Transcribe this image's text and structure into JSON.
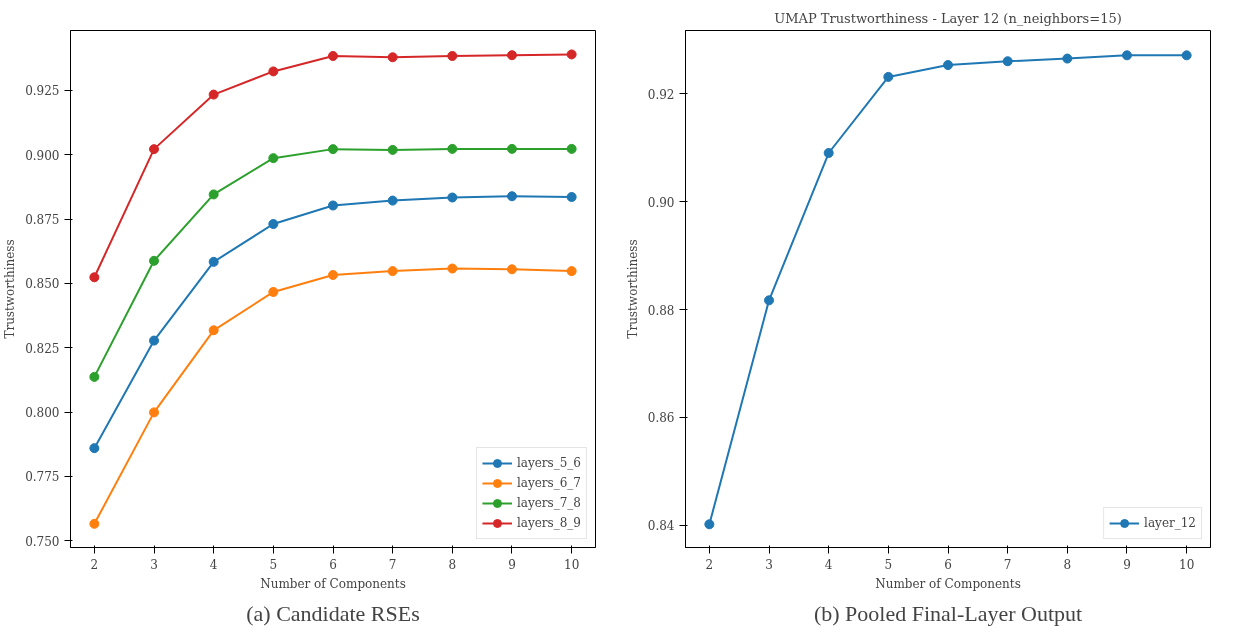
{
  "chart_data": [
    {
      "type": "line",
      "xlabel": "Number of Components",
      "ylabel": "Trustworthiness",
      "annotations": [
        "(a) Candidate RSEs"
      ],
      "x": [
        2,
        3,
        4,
        5,
        6,
        7,
        8,
        9,
        10
      ],
      "xlim": [
        1.6,
        10.4
      ],
      "xticks": [
        2,
        3,
        4,
        5,
        6,
        7,
        8,
        9,
        10
      ],
      "ylim": [
        0.7474,
        0.9483
      ],
      "yticks": [
        {
          "value": 0.75,
          "label": "0.750"
        },
        {
          "value": 0.775,
          "label": "0.775"
        },
        {
          "value": 0.8,
          "label": "0.800"
        },
        {
          "value": 0.825,
          "label": "0.825"
        },
        {
          "value": 0.85,
          "label": "0.850"
        },
        {
          "value": 0.875,
          "label": "0.875"
        },
        {
          "value": 0.9,
          "label": "0.900"
        },
        {
          "value": 0.925,
          "label": "0.925"
        }
      ],
      "grid": false,
      "legend": "bottom right",
      "marker": "circle",
      "line_style": "solid",
      "series": [
        {
          "name": "layers_5_6",
          "color": "#1f77b4",
          "values": [
            0.786,
            0.8278,
            0.8584,
            0.8731,
            0.8803,
            0.8822,
            0.8834,
            0.8839,
            0.8836
          ]
        },
        {
          "name": "layers_6_7",
          "color": "#ff7f0e",
          "values": [
            0.7566,
            0.7999,
            0.8318,
            0.8467,
            0.8533,
            0.8548,
            0.8558,
            0.8555,
            0.8548
          ]
        },
        {
          "name": "layers_7_8",
          "color": "#2ca02c",
          "values": [
            0.8137,
            0.8588,
            0.8846,
            0.8987,
            0.9022,
            0.9019,
            0.9023,
            0.9023,
            0.9023
          ]
        },
        {
          "name": "layers_8_9",
          "color": "#d62728",
          "values": [
            0.8524,
            0.9022,
            0.9234,
            0.9324,
            0.9384,
            0.9379,
            0.9384,
            0.9387,
            0.939
          ]
        }
      ]
    },
    {
      "type": "line",
      "title": "UMAP Trustworthiness - Layer 12 (n_neighbors=15)",
      "xlabel": "Number of Components",
      "ylabel": "Trustworthiness",
      "annotations": [
        "(b) Pooled Final-Layer Output"
      ],
      "x": [
        2,
        3,
        4,
        5,
        6,
        7,
        8,
        9,
        10
      ],
      "xlim": [
        1.6,
        10.4
      ],
      "xticks": [
        2,
        3,
        4,
        5,
        6,
        7,
        8,
        9,
        10
      ],
      "ylim": [
        0.8359,
        0.9317
      ],
      "yticks": [
        {
          "value": 0.84,
          "label": "0.84"
        },
        {
          "value": 0.86,
          "label": "0.86"
        },
        {
          "value": 0.88,
          "label": "0.88"
        },
        {
          "value": 0.9,
          "label": "0.90"
        },
        {
          "value": 0.92,
          "label": "0.92"
        }
      ],
      "grid": false,
      "legend": "bottom right",
      "marker": "circle",
      "line_style": "solid",
      "series": [
        {
          "name": "layer_12",
          "color": "#1f77b4",
          "values": [
            0.8402,
            0.8817,
            0.909,
            0.9231,
            0.9253,
            0.926,
            0.9265,
            0.9271,
            0.9271
          ]
        }
      ]
    }
  ]
}
